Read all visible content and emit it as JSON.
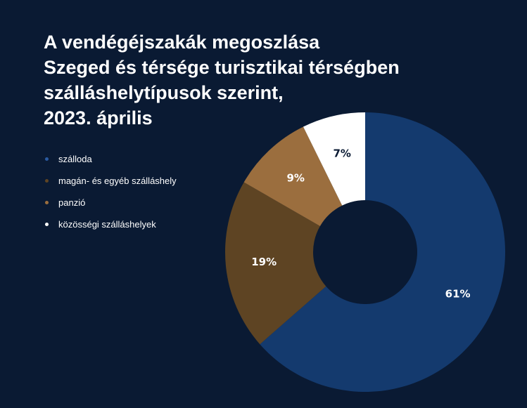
{
  "chart_data": {
    "type": "donut",
    "title_lines": [
      "A vendégéjszakák megoszlása",
      "Szeged és térsége turisztikai térségben",
      "szálláshelytípusok szerint,",
      "2023. április"
    ],
    "categories": [
      "szálloda",
      "magán- és egyéb szálláshely",
      "panzió",
      "közösségi szálláshelyek"
    ],
    "values": [
      61,
      19,
      9,
      7
    ],
    "labels": [
      "61%",
      "19%",
      "9%",
      "7%"
    ],
    "colors": [
      "#143a6e",
      "#5e4423",
      "#9b6e3e",
      "#ffffff"
    ],
    "label_colors": [
      "#ffffff",
      "#ffffff",
      "#ffffff",
      "#0a1a33"
    ],
    "legend_placement": "left"
  }
}
